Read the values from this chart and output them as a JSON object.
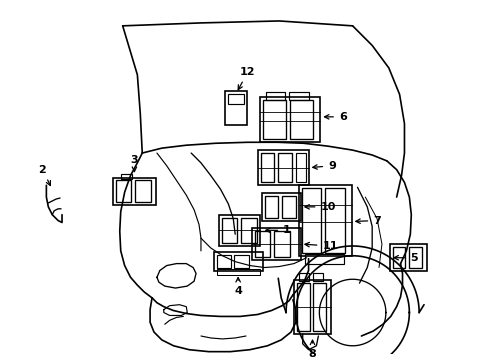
{
  "background_color": "#ffffff",
  "line_color": "#000000",
  "line_width": 1.2,
  "label_fontsize": 8,
  "fig_width": 4.89,
  "fig_height": 3.6,
  "dpi": 100
}
